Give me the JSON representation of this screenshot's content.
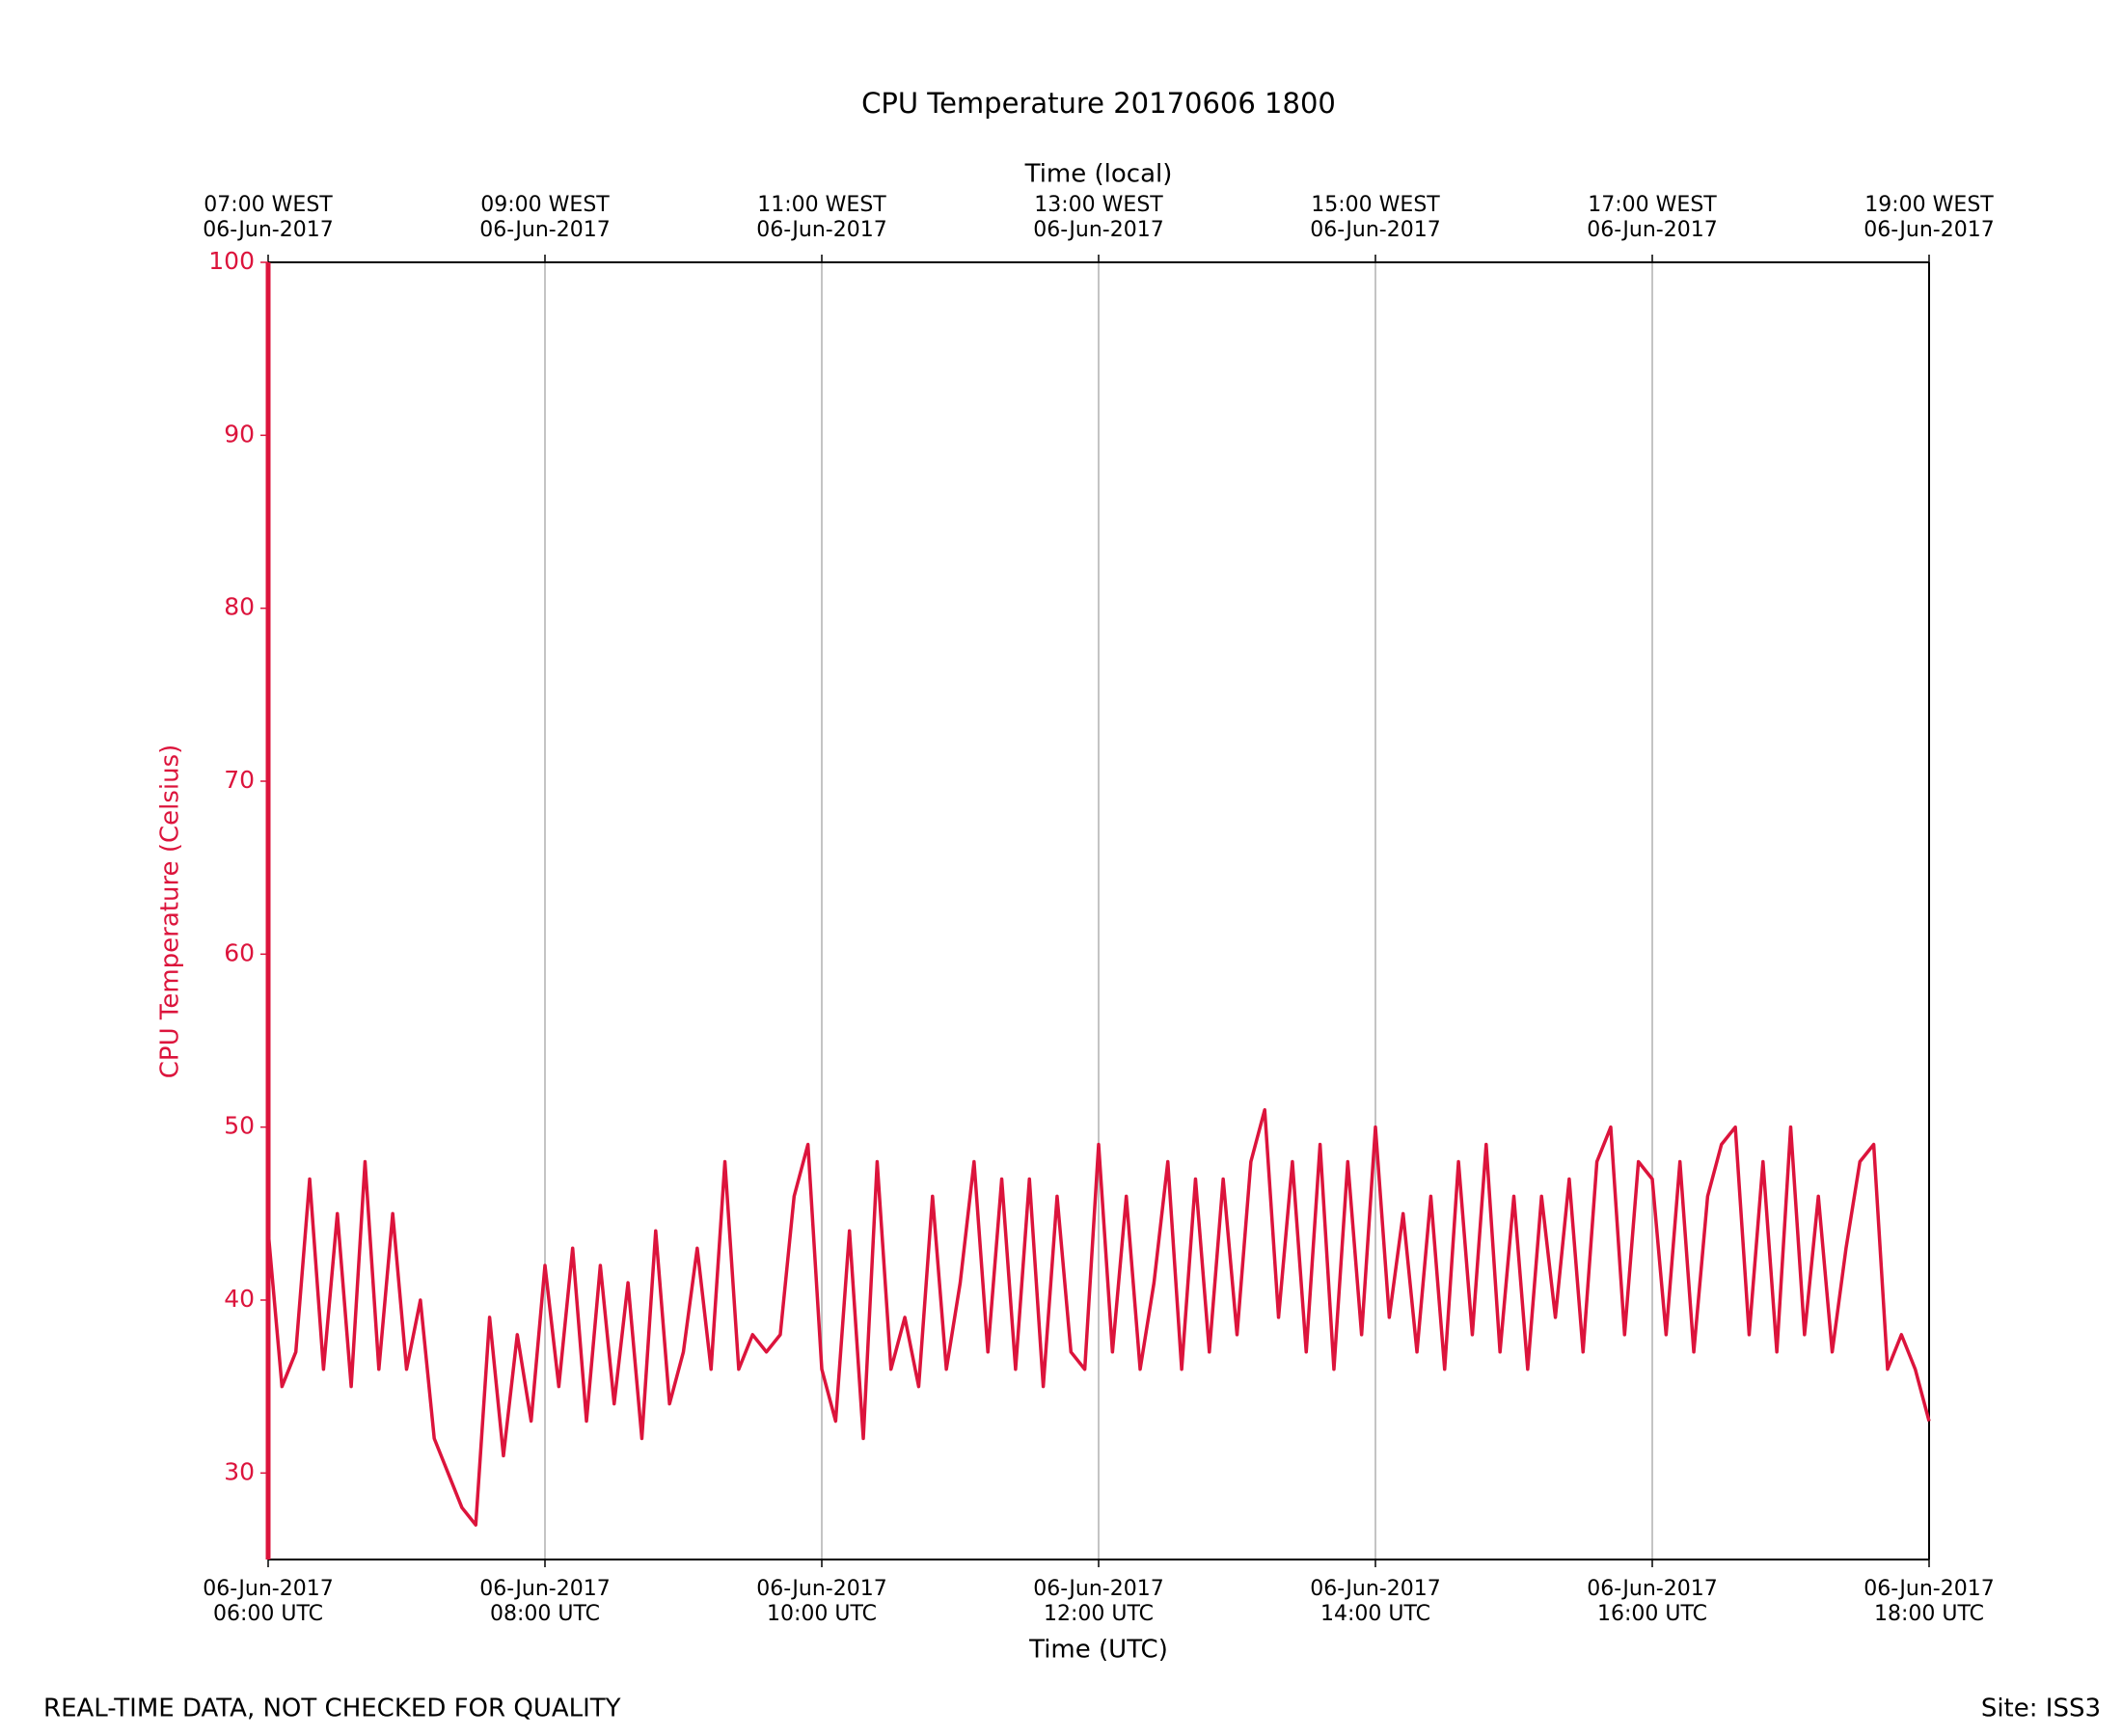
{
  "chart_data": {
    "type": "line",
    "title": "CPU Temperature 20170606 1800",
    "xlabel": "Time (UTC)",
    "x2label": "Time (local)",
    "ylabel": "CPU Temperature (Celsius)",
    "color": "#dc143c",
    "x": [
      6,
      6.1,
      6.2,
      6.3,
      6.4,
      6.5,
      6.6,
      6.7,
      6.8,
      6.9,
      7,
      7.1,
      7.2,
      7.3,
      7.4,
      7.5,
      7.6,
      7.7,
      7.8,
      7.9,
      8,
      8.1,
      8.2,
      8.3,
      8.4,
      8.5,
      8.6,
      8.7,
      8.8,
      8.9,
      9,
      9.1,
      9.2,
      9.3,
      9.4,
      9.5,
      9.6,
      9.7,
      9.8,
      9.9,
      10,
      10.1,
      10.2,
      10.3,
      10.4,
      10.5,
      10.6,
      10.7,
      10.8,
      10.9,
      11,
      11.1,
      11.2,
      11.3,
      11.4,
      11.5,
      11.6,
      11.7,
      11.8,
      11.9,
      12,
      12.1,
      12.2,
      12.3,
      12.4,
      12.5,
      12.6,
      12.7,
      12.8,
      12.9,
      13,
      13.1,
      13.2,
      13.3,
      13.4,
      13.5,
      13.6,
      13.7,
      13.8,
      13.9,
      14,
      14.1,
      14.2,
      14.3,
      14.4,
      14.5,
      14.6,
      14.7,
      14.8,
      14.9,
      15,
      15.1,
      15.2,
      15.3,
      15.4,
      15.5,
      15.6,
      15.7,
      15.8,
      15.9,
      16,
      16.1,
      16.2,
      16.3,
      16.4,
      16.5,
      16.6,
      16.7,
      16.8,
      16.9,
      17,
      17.1,
      17.2,
      17.3,
      17.4,
      17.5,
      17.6,
      17.7,
      17.8,
      17.9,
      18
    ],
    "values": [
      44,
      35,
      37,
      47,
      36,
      45,
      35,
      48,
      36,
      45,
      36,
      40,
      32,
      30,
      28,
      27,
      39,
      31,
      38,
      33,
      42,
      35,
      43,
      33,
      42,
      34,
      41,
      32,
      44,
      34,
      37,
      43,
      36,
      48,
      36,
      38,
      37,
      38,
      46,
      49,
      36,
      33,
      44,
      32,
      48,
      36,
      39,
      35,
      46,
      36,
      41,
      48,
      37,
      47,
      36,
      47,
      35,
      46,
      37,
      36,
      49,
      37,
      46,
      36,
      41,
      48,
      36,
      47,
      37,
      47,
      38,
      48,
      51,
      39,
      48,
      37,
      49,
      36,
      48,
      38,
      50,
      39,
      45,
      37,
      46,
      36,
      48,
      38,
      49,
      37,
      46,
      36,
      46,
      39,
      47,
      37,
      48,
      50,
      38,
      48,
      47,
      38,
      48,
      37,
      46,
      49,
      50,
      38,
      48,
      37,
      50,
      38,
      46,
      37,
      43,
      48,
      49,
      36,
      38,
      36,
      33
    ],
    "xlim": [
      6,
      18
    ],
    "xticks": [
      {
        "value": 6,
        "label": [
          "06-Jun-2017",
          "06:00 UTC"
        ]
      },
      {
        "value": 8,
        "label": [
          "06-Jun-2017",
          "08:00 UTC"
        ]
      },
      {
        "value": 10,
        "label": [
          "06-Jun-2017",
          "10:00 UTC"
        ]
      },
      {
        "value": 12,
        "label": [
          "06-Jun-2017",
          "12:00 UTC"
        ]
      },
      {
        "value": 14,
        "label": [
          "06-Jun-2017",
          "14:00 UTC"
        ]
      },
      {
        "value": 16,
        "label": [
          "06-Jun-2017",
          "16:00 UTC"
        ]
      },
      {
        "value": 18,
        "label": [
          "06-Jun-2017",
          "18:00 UTC"
        ]
      }
    ],
    "x2ticks": [
      {
        "value": 6,
        "label": [
          "07:00 WEST",
          "06-Jun-2017"
        ]
      },
      {
        "value": 8,
        "label": [
          "09:00 WEST",
          "06-Jun-2017"
        ]
      },
      {
        "value": 10,
        "label": [
          "11:00 WEST",
          "06-Jun-2017"
        ]
      },
      {
        "value": 12,
        "label": [
          "13:00 WEST",
          "06-Jun-2017"
        ]
      },
      {
        "value": 14,
        "label": [
          "15:00 WEST",
          "06-Jun-2017"
        ]
      },
      {
        "value": 16,
        "label": [
          "17:00 WEST",
          "06-Jun-2017"
        ]
      },
      {
        "value": 18,
        "label": [
          "19:00 WEST",
          "06-Jun-2017"
        ]
      }
    ],
    "ylim": [
      25,
      100
    ],
    "yticks": [
      30,
      40,
      50,
      60,
      70,
      80,
      90,
      100
    ],
    "grid": "x"
  },
  "footer": {
    "note": "REAL-TIME DATA, NOT CHECKED FOR QUALITY",
    "site": "Site: ISS3"
  }
}
